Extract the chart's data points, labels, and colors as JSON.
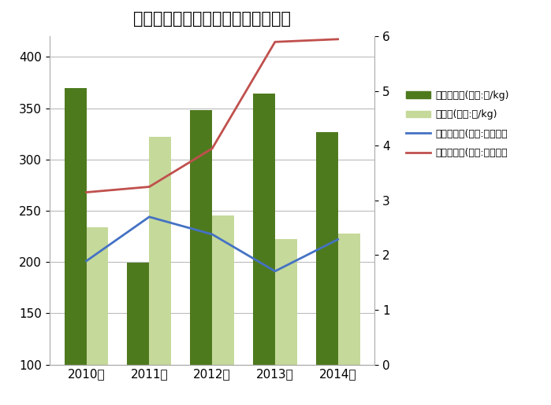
{
  "title": "わかめ価格・生産量・輸入量の推移",
  "years": [
    "2010年",
    "2011年",
    "2012年",
    "2013年",
    "2014年"
  ],
  "domestic_production": [
    370,
    199,
    348,
    364,
    327
  ],
  "import_volume": [
    234,
    322,
    245,
    222,
    228
  ],
  "domestic_price": [
    201,
    244,
    227,
    191,
    222
  ],
  "import_price": [
    3.15,
    3.25,
    3.95,
    5.9,
    5.95
  ],
  "bar_color_domestic": "#4E7A1E",
  "bar_color_import": "#C5D99A",
  "line_color_domestic": "#4472C4",
  "line_color_import": "#C0504D",
  "ylim_left": [
    100,
    420
  ],
  "ylim_right": [
    0,
    6
  ],
  "yticks_left": [
    100,
    150,
    200,
    250,
    300,
    350,
    400
  ],
  "yticks_right": [
    0,
    1,
    2,
    3,
    4,
    5,
    6
  ],
  "legend_labels": [
    "国内生産量(単位:円/kg)",
    "輸入量(単位:円/kg)",
    "国産品価格(単位:万トン）",
    "輸入品価格(単位:万トン）"
  ],
  "title_fontsize": 15,
  "tick_fontsize": 11,
  "legend_fontsize": 9,
  "bar_width": 0.35,
  "background_color": "#FFFFFF",
  "grid_color": "#BBBBBB",
  "spine_color": "#AAAAAA"
}
